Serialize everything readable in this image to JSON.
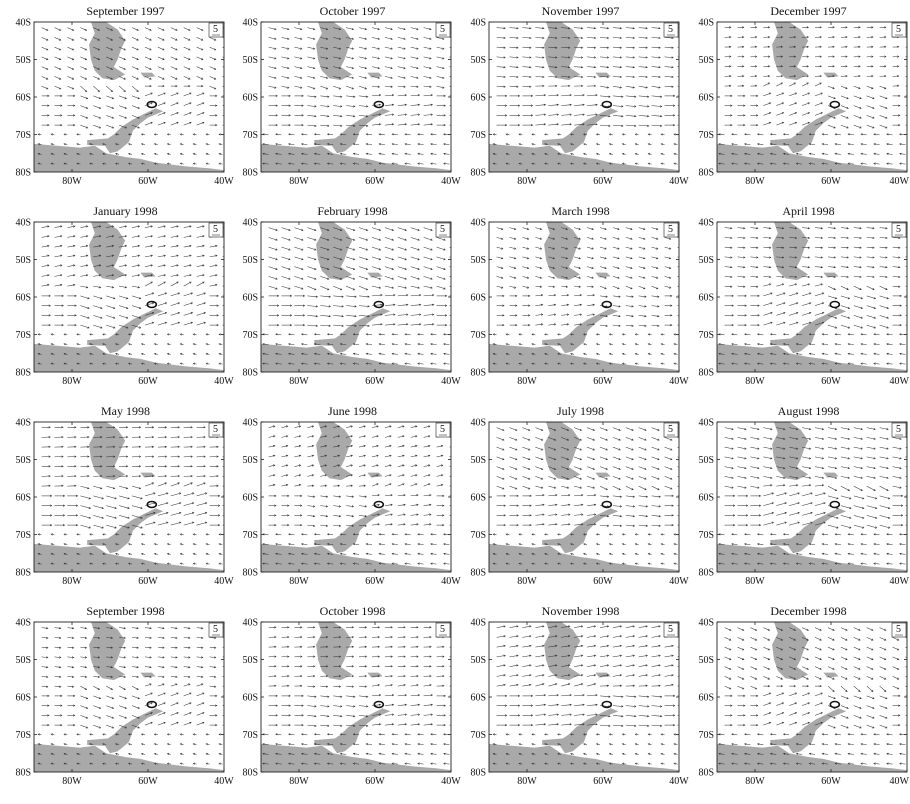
{
  "figure": {
    "panels": [
      {
        "title": "September 1997"
      },
      {
        "title": "October 1997"
      },
      {
        "title": "November 1997"
      },
      {
        "title": "December 1997"
      },
      {
        "title": "January 1998"
      },
      {
        "title": "February 1998"
      },
      {
        "title": "March 1998"
      },
      {
        "title": "April 1998"
      },
      {
        "title": "May 1998"
      },
      {
        "title": "June 1998"
      },
      {
        "title": "July 1998"
      },
      {
        "title": "August 1998"
      },
      {
        "title": "September 1998"
      },
      {
        "title": "October 1998"
      },
      {
        "title": "November 1998"
      },
      {
        "title": "December 1998"
      }
    ],
    "lat_ticks": [
      "40S",
      "50S",
      "60S",
      "70S",
      "80S"
    ],
    "lon_ticks": [
      "80W",
      "60W",
      "40W"
    ],
    "reference_vector": "5",
    "colors": {
      "land": "#a9a9a9",
      "vector": "#333333",
      "frame": "#222222",
      "marker": "#111111"
    }
  },
  "chart_data": {
    "type": "vector-map",
    "lat_range": [
      -80,
      -40
    ],
    "lon_range": [
      -90,
      -40
    ],
    "lat_ticks": [
      -40,
      -50,
      -60,
      -70,
      -80
    ],
    "lon_ticks": [
      -80,
      -60,
      -40
    ],
    "reference_vector_magnitude": 5,
    "marked_location": {
      "lon": -59,
      "lat": -62
    }
  }
}
